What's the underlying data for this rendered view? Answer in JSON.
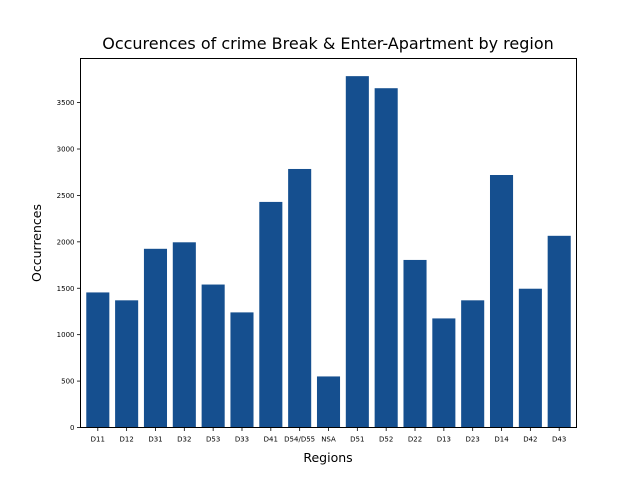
{
  "chart_data": {
    "type": "bar",
    "title": "Occurences of crime Break & Enter-Apartment by region",
    "xlabel": "Regions",
    "ylabel": "Occurrences",
    "categories": [
      "D11",
      "D12",
      "D31",
      "D32",
      "D53",
      "D33",
      "D41",
      "D54/D55",
      "NSA",
      "D51",
      "D52",
      "D22",
      "D13",
      "D23",
      "D14",
      "D42",
      "D43"
    ],
    "values": [
      1455,
      1370,
      1925,
      1995,
      1540,
      1240,
      2430,
      2785,
      550,
      3785,
      3655,
      1805,
      1175,
      1370,
      2720,
      1495,
      2065
    ],
    "yticks": [
      0,
      500,
      1000,
      1500,
      2000,
      2500,
      3000,
      3500
    ],
    "ylim": [
      0,
      3975
    ],
    "grid": false,
    "bar_color": "#154f8f"
  }
}
